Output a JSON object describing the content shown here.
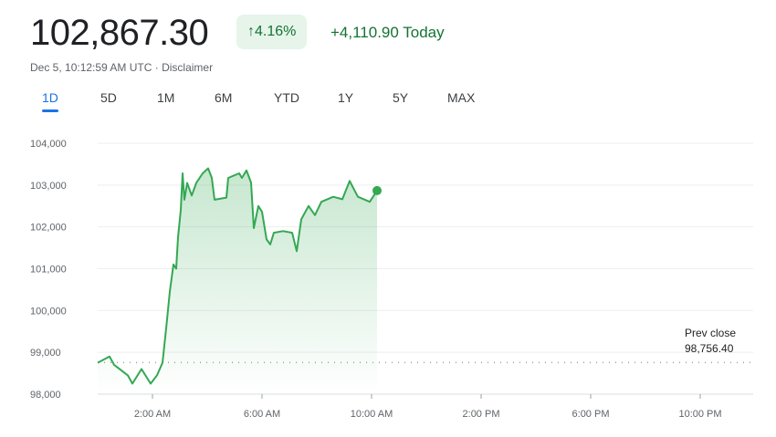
{
  "header": {
    "price": "102,867.30",
    "change_percent": "4.16%",
    "change_arrow_icon": "arrow-up-icon",
    "change_today": "+4,110.90 Today",
    "timestamp": "Dec 5, 10:12:59 AM UTC",
    "separator": " · ",
    "disclaimer": "Disclaimer"
  },
  "tabs": [
    {
      "label": "1D",
      "active": true
    },
    {
      "label": "5D"
    },
    {
      "label": "1M"
    },
    {
      "label": "6M"
    },
    {
      "label": "YTD"
    },
    {
      "label": "1Y"
    },
    {
      "label": "5Y"
    },
    {
      "label": "MAX"
    }
  ],
  "colors": {
    "up": "#137333",
    "line": "#34a853",
    "accent": "#1a73e8",
    "badge_bg": "#e6f4ea"
  },
  "chart_data": {
    "type": "area",
    "ylim": [
      98000,
      104000
    ],
    "yticks": [
      "98,000",
      "99,000",
      "100,000",
      "101,000",
      "102,000",
      "103,000",
      "104,000"
    ],
    "ytick_values": [
      98000,
      99000,
      100000,
      101000,
      102000,
      103000,
      104000
    ],
    "xlim": [
      "00:00",
      "24:00"
    ],
    "xticks": [
      "2:00 AM",
      "6:00 AM",
      "10:00 AM",
      "2:00 PM",
      "6:00 PM",
      "10:00 PM"
    ],
    "xtick_times": [
      "02:00",
      "06:00",
      "10:00",
      "14:00",
      "18:00",
      "22:00"
    ],
    "grid": true,
    "prev_close": {
      "label": "Prev close",
      "value_label": "98,756.40",
      "value": 98756.4
    },
    "points": [
      [
        "00:00",
        98750
      ],
      [
        "00:26",
        98900
      ],
      [
        "00:36",
        98700
      ],
      [
        "01:06",
        98450
      ],
      [
        "01:16",
        98250
      ],
      [
        "01:36",
        98600
      ],
      [
        "01:56",
        98250
      ],
      [
        "02:10",
        98450
      ],
      [
        "02:22",
        98750
      ],
      [
        "02:30",
        99570
      ],
      [
        "02:38",
        100450
      ],
      [
        "02:46",
        101100
      ],
      [
        "02:52",
        101000
      ],
      [
        "02:56",
        101750
      ],
      [
        "03:02",
        102400
      ],
      [
        "03:06",
        103280
      ],
      [
        "03:10",
        102650
      ],
      [
        "03:16",
        103050
      ],
      [
        "03:26",
        102750
      ],
      [
        "03:36",
        103050
      ],
      [
        "03:50",
        103280
      ],
      [
        "04:02",
        103400
      ],
      [
        "04:10",
        103170
      ],
      [
        "04:16",
        102650
      ],
      [
        "04:42",
        102700
      ],
      [
        "04:46",
        103170
      ],
      [
        "05:10",
        103280
      ],
      [
        "05:16",
        103170
      ],
      [
        "05:26",
        103350
      ],
      [
        "05:36",
        103060
      ],
      [
        "05:42",
        101970
      ],
      [
        "05:52",
        102500
      ],
      [
        "06:00",
        102360
      ],
      [
        "06:10",
        101700
      ],
      [
        "06:18",
        101580
      ],
      [
        "06:26",
        101860
      ],
      [
        "06:46",
        101900
      ],
      [
        "07:06",
        101860
      ],
      [
        "07:16",
        101420
      ],
      [
        "07:26",
        102180
      ],
      [
        "07:42",
        102500
      ],
      [
        "07:56",
        102280
      ],
      [
        "08:10",
        102600
      ],
      [
        "08:36",
        102720
      ],
      [
        "08:56",
        102660
      ],
      [
        "09:12",
        103100
      ],
      [
        "09:30",
        102720
      ],
      [
        "09:56",
        102600
      ],
      [
        "10:12",
        102867.3
      ]
    ]
  }
}
